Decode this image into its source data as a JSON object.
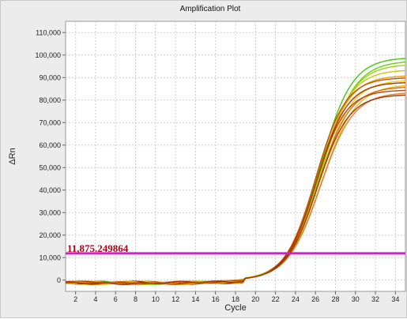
{
  "chart_data": {
    "type": "line",
    "title": "Amplification Plot",
    "xlabel": "Cycle",
    "ylabel": "ΔRn",
    "xlim": [
      1,
      35
    ],
    "ylim": [
      -5000,
      115000
    ],
    "x_ticks": [
      2,
      4,
      6,
      8,
      10,
      12,
      14,
      16,
      18,
      20,
      22,
      24,
      26,
      28,
      30,
      32,
      34
    ],
    "y_ticks": [
      0,
      10000,
      20000,
      30000,
      40000,
      50000,
      60000,
      70000,
      80000,
      90000,
      100000,
      110000
    ],
    "y_tick_labels": [
      "0",
      "10,000",
      "20,000",
      "30,000",
      "40,000",
      "50,000",
      "60,000",
      "70,000",
      "80,000",
      "90,000",
      "100,000",
      "110,000"
    ],
    "grid": true,
    "threshold": {
      "value": 11875.249864,
      "label": "11,875.249864",
      "color": "#d31ecf"
    },
    "series": [
      {
        "plateau": 99000,
        "midpoint": 26.4,
        "slope": 0.62,
        "color": "#3fc200"
      },
      {
        "plateau": 97500,
        "midpoint": 26.6,
        "slope": 0.6,
        "color": "#5fd000"
      },
      {
        "plateau": 96000,
        "midpoint": 26.5,
        "slope": 0.61,
        "color": "#8fd400"
      },
      {
        "plateau": 93500,
        "midpoint": 26.3,
        "slope": 0.63,
        "color": "#c8c400"
      },
      {
        "plateau": 91000,
        "midpoint": 26.2,
        "slope": 0.64,
        "color": "#e0a000"
      },
      {
        "plateau": 90000,
        "midpoint": 26.0,
        "slope": 0.66,
        "color": "#c04a00"
      },
      {
        "plateau": 89000,
        "midpoint": 26.4,
        "slope": 0.62,
        "color": "#e8d000"
      },
      {
        "plateau": 88000,
        "midpoint": 26.1,
        "slope": 0.65,
        "color": "#a32800"
      },
      {
        "plateau": 87000,
        "midpoint": 26.6,
        "slope": 0.59,
        "color": "#f0b400"
      },
      {
        "plateau": 86000,
        "midpoint": 26.3,
        "slope": 0.63,
        "color": "#d06800"
      },
      {
        "plateau": 84500,
        "midpoint": 26.0,
        "slope": 0.67,
        "color": "#b84000"
      },
      {
        "plateau": 83500,
        "midpoint": 26.5,
        "slope": 0.61,
        "color": "#e07820"
      },
      {
        "plateau": 82500,
        "midpoint": 26.2,
        "slope": 0.64,
        "color": "#9a3000"
      }
    ]
  }
}
